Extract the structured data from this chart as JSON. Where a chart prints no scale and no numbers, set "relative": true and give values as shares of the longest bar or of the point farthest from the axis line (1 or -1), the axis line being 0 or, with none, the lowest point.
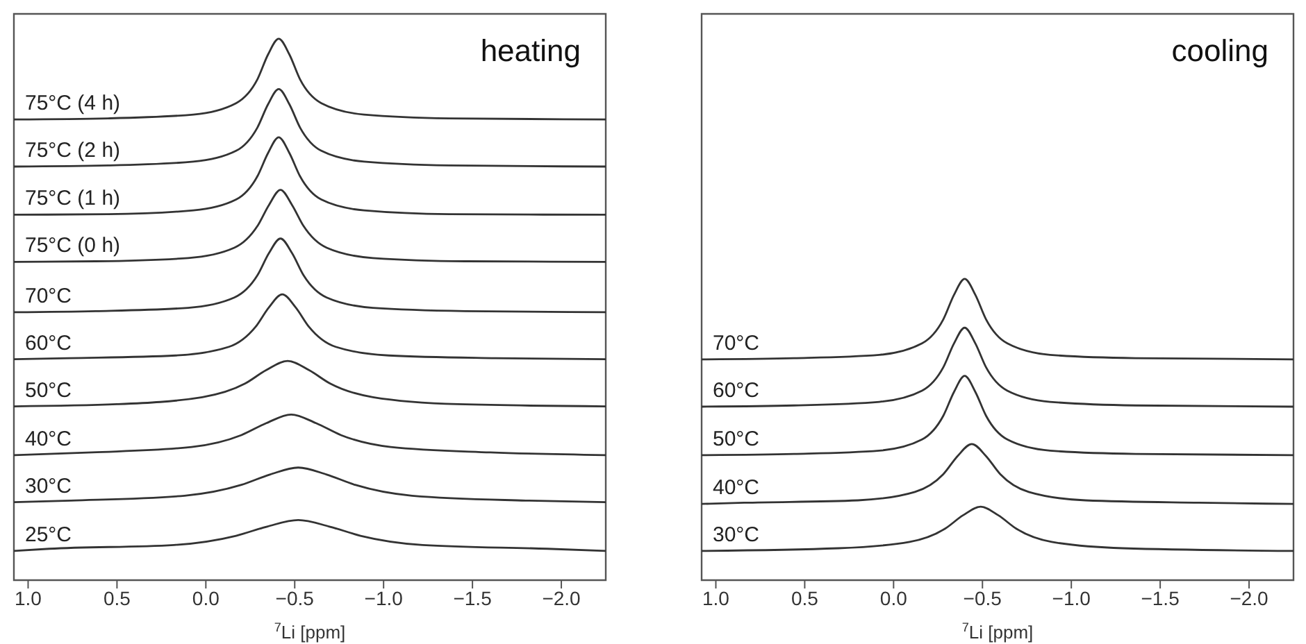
{
  "chart_data": [
    {
      "type": "line",
      "title": "heating",
      "xlabel": "$^{7}$Li [ppm]",
      "relative": true,
      "marker": "none",
      "xlim": [
        1.08,
        -2.25
      ],
      "xticks": [
        {
          "value": 1,
          "label": "1.0"
        },
        {
          "value": 0.5,
          "label": "0.5"
        },
        {
          "value": 0,
          "label": "0.0"
        },
        {
          "value": -0.5,
          "label": "−0.5"
        },
        {
          "value": -1,
          "label": "−1.0"
        },
        {
          "value": -1.5,
          "label": "−1.5"
        },
        {
          "value": -2,
          "label": "−2.0"
        }
      ],
      "series": [
        {
          "name": "25°C",
          "color": "#333333",
          "x": [
            1.08,
            0.88,
            0.18,
            -0.17,
            -0.345,
            -0.52,
            -0.695,
            -0.87,
            -1.22,
            -1.92,
            -2.25
          ],
          "values": [
            0.054,
            0.058,
            0.065,
            0.082,
            0.099,
            0.111,
            0.099,
            0.082,
            0.065,
            0.058,
            0.054
          ]
        },
        {
          "name": "30°C",
          "color": "#333333",
          "x": [
            1.08,
            0.76,
            0.12,
            -0.2,
            -0.36,
            -0.52,
            -0.68,
            -0.84,
            -1.16,
            -1.8,
            -2.25
          ],
          "values": [
            0.144,
            0.147,
            0.156,
            0.176,
            0.195,
            0.208,
            0.195,
            0.176,
            0.156,
            0.147,
            0.144
          ]
        },
        {
          "name": "40°C",
          "color": "#333333",
          "x": [
            1.08,
            0.64,
            0.08,
            -0.2,
            -0.34,
            -0.48,
            -0.62,
            -0.76,
            -1.04,
            -1.6,
            -2.25
          ],
          "values": [
            0.231,
            0.236,
            0.246,
            0.268,
            0.29,
            0.306,
            0.29,
            0.268,
            0.246,
            0.236,
            0.231
          ]
        },
        {
          "name": "50°C",
          "color": "#333333",
          "x": [
            1.08,
            0.5,
            0.02,
            -0.22,
            -0.34,
            -0.46,
            -0.58,
            -0.7,
            -0.94,
            -1.42,
            -2.25
          ],
          "values": [
            0.321,
            0.325,
            0.338,
            0.363,
            0.388,
            0.405,
            0.388,
            0.363,
            0.338,
            0.325,
            0.321
          ]
        },
        {
          "name": "60°C",
          "color": "#333333",
          "x": [
            1.08,
            0.77,
            0.17,
            -0.13,
            -0.28,
            -0.355,
            -0.43,
            -0.505,
            -0.58,
            -0.73,
            -1.03,
            -1.63,
            -2.25
          ],
          "values": [
            0.408,
            0.41,
            0.415,
            0.431,
            0.468,
            0.504,
            0.528,
            0.504,
            0.468,
            0.431,
            0.415,
            0.41,
            0.408
          ]
        },
        {
          "name": "70°C",
          "color": "#333333",
          "x": [
            1.08,
            0.62,
            0.1,
            -0.16,
            -0.29,
            -0.355,
            -0.42,
            -0.485,
            -0.55,
            -0.68,
            -0.94,
            -1.46,
            -2.25
          ],
          "values": [
            0.495,
            0.497,
            0.503,
            0.522,
            0.563,
            0.604,
            0.631,
            0.604,
            0.563,
            0.522,
            0.503,
            0.497,
            0.495
          ]
        },
        {
          "name": "75°C (0 h)",
          "color": "#333333",
          "x": [
            1.08,
            0.62,
            0.1,
            -0.16,
            -0.29,
            -0.355,
            -0.42,
            -0.485,
            -0.55,
            -0.68,
            -0.94,
            -1.46,
            -2.25
          ],
          "values": [
            0.588,
            0.589,
            0.595,
            0.614,
            0.654,
            0.693,
            0.721,
            0.693,
            0.654,
            0.614,
            0.595,
            0.589,
            0.588
          ]
        },
        {
          "name": "75°C (1 h)",
          "color": "#333333",
          "x": [
            1.08,
            0.55,
            0.07,
            -0.17,
            -0.29,
            -0.35,
            -0.41,
            -0.47,
            -0.53,
            -0.65,
            -0.89,
            -1.37,
            -2.25
          ],
          "values": [
            0.675,
            0.676,
            0.683,
            0.703,
            0.746,
            0.789,
            0.818,
            0.789,
            0.746,
            0.703,
            0.683,
            0.676,
            0.675
          ]
        },
        {
          "name": "75°C (2 h)",
          "color": "#333333",
          "x": [
            1.08,
            0.55,
            0.07,
            -0.17,
            -0.29,
            -0.35,
            -0.41,
            -0.47,
            -0.53,
            -0.65,
            -0.89,
            -1.37,
            -2.25
          ],
          "values": [
            0.764,
            0.766,
            0.773,
            0.793,
            0.836,
            0.879,
            0.907,
            0.879,
            0.836,
            0.793,
            0.773,
            0.766,
            0.764
          ]
        },
        {
          "name": "75°C (4 h)",
          "color": "#333333",
          "x": [
            1.08,
            0.55,
            0.07,
            -0.17,
            -0.29,
            -0.35,
            -0.41,
            -0.47,
            -0.53,
            -0.65,
            -0.89,
            -1.37,
            -2.25
          ],
          "values": [
            0.851,
            0.853,
            0.86,
            0.881,
            0.925,
            0.971,
            1,
            0.971,
            0.925,
            0.881,
            0.86,
            0.853,
            0.851
          ]
        }
      ]
    },
    {
      "type": "line",
      "title": "cooling",
      "xlabel": "$^{7}$Li [ppm]",
      "relative": true,
      "marker": "none",
      "xlim": [
        1.08,
        -2.25
      ],
      "xticks": [
        {
          "value": 1,
          "label": "1.0"
        },
        {
          "value": 0.5,
          "label": "0.5"
        },
        {
          "value": 0,
          "label": "0.0"
        },
        {
          "value": -0.5,
          "label": "−0.5"
        },
        {
          "value": -1,
          "label": "−1.0"
        },
        {
          "value": -1.5,
          "label": "−1.5"
        },
        {
          "value": -2,
          "label": "−2.0"
        }
      ],
      "series": [
        {
          "name": "30°C",
          "color": "#333333",
          "x": [
            1.08,
            0.31,
            -0.09,
            -0.29,
            -0.39,
            -0.49,
            -0.59,
            -0.69,
            -0.89,
            -1.29,
            -2.25
          ],
          "values": [
            0.097,
            0.106,
            0.127,
            0.171,
            0.215,
            0.244,
            0.215,
            0.171,
            0.127,
            0.106,
            0.097
          ]
        },
        {
          "name": "40°C",
          "color": "#333333",
          "x": [
            1.08,
            0.84,
            0.2,
            -0.12,
            -0.28,
            -0.36,
            -0.44,
            -0.52,
            -0.6,
            -0.76,
            -1.08,
            -1.72,
            -2.25
          ],
          "values": [
            0.253,
            0.257,
            0.265,
            0.293,
            0.352,
            0.412,
            0.452,
            0.412,
            0.352,
            0.293,
            0.265,
            0.257,
            0.253
          ]
        },
        {
          "name": "50°C",
          "color": "#333333",
          "x": [
            1.08,
            0.56,
            0.08,
            -0.16,
            -0.28,
            -0.34,
            -0.4,
            -0.46,
            -0.52,
            -0.64,
            -0.88,
            -1.36,
            -2.25
          ],
          "values": [
            0.415,
            0.419,
            0.43,
            0.467,
            0.546,
            0.625,
            0.678,
            0.625,
            0.546,
            0.467,
            0.43,
            0.419,
            0.415
          ]
        },
        {
          "name": "60°C",
          "color": "#333333",
          "x": [
            1.08,
            0.56,
            0.08,
            -0.16,
            -0.28,
            -0.34,
            -0.4,
            -0.46,
            -0.52,
            -0.64,
            -0.88,
            -1.36,
            -2.25
          ],
          "values": [
            0.576,
            0.58,
            0.592,
            0.629,
            0.707,
            0.786,
            0.838,
            0.786,
            0.707,
            0.629,
            0.592,
            0.58,
            0.576
          ]
        },
        {
          "name": "70°C",
          "color": "#333333",
          "x": [
            1.08,
            0.56,
            0.08,
            -0.16,
            -0.28,
            -0.34,
            -0.4,
            -0.46,
            -0.52,
            -0.64,
            -0.88,
            -1.36,
            -2.25
          ],
          "values": [
            0.733,
            0.737,
            0.748,
            0.786,
            0.866,
            0.947,
            1,
            0.947,
            0.866,
            0.786,
            0.748,
            0.737,
            0.733
          ]
        }
      ]
    }
  ]
}
